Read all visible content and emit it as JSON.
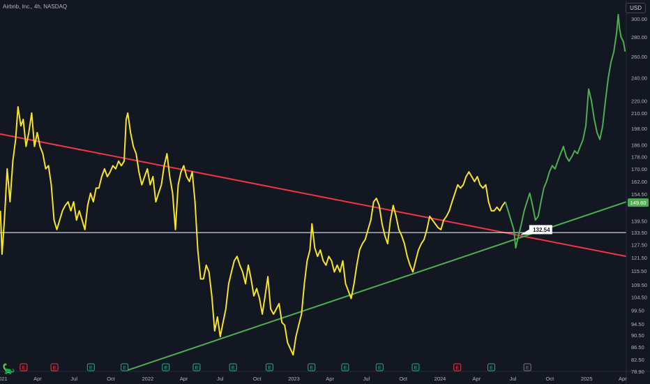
{
  "header": {
    "title": "Airbnb, Inc., 4h, NASDAQ",
    "currency": "USD"
  },
  "logo": {
    "icon": "tradingview-logo-icon"
  },
  "events": [
    {
      "label": "E",
      "color": "#f23645",
      "date": "2021-02-25"
    },
    {
      "label": "E",
      "color": "#f23645",
      "date": "2021-05-13"
    },
    {
      "label": "E",
      "color": "#22ab94",
      "date": "2021-08-12"
    },
    {
      "label": "E",
      "color": "#22ab94",
      "date": "2021-11-04"
    },
    {
      "label": "E",
      "color": "#22ab94",
      "date": "2022-02-15"
    },
    {
      "label": "E",
      "color": "#22ab94",
      "date": "2022-05-03"
    },
    {
      "label": "E",
      "color": "#22ab94",
      "date": "2022-08-02"
    },
    {
      "label": "E",
      "color": "#22ab94",
      "date": "2022-11-01"
    },
    {
      "label": "E",
      "color": "#22ab94",
      "date": "2023-02-14"
    },
    {
      "label": "E",
      "color": "#22ab94",
      "date": "2023-05-09"
    },
    {
      "label": "E",
      "color": "#22ab94",
      "date": "2023-08-03"
    },
    {
      "label": "E",
      "color": "#22ab94",
      "date": "2023-11-01"
    },
    {
      "label": "E",
      "color": "#f23645",
      "date": "2024-02-13"
    },
    {
      "label": "E",
      "color": "#22ab94",
      "date": "2024-05-08"
    },
    {
      "label": "E",
      "color": "#787b86",
      "date": "2024-08-06"
    }
  ],
  "chart_data": {
    "type": "line",
    "title": "Airbnb, Inc., 4h, NASDAQ",
    "xlabel": "",
    "ylabel": "",
    "y_scale": "log",
    "ylim": [
      78.9,
      318
    ],
    "xlim": [
      "2020-12-28",
      "2025-04-10"
    ],
    "grid": false,
    "x_tick_labels": [
      {
        "date": "2021-01-01",
        "label": "2021"
      },
      {
        "date": "2021-04-01",
        "label": "Apr"
      },
      {
        "date": "2021-07-01",
        "label": "Jul"
      },
      {
        "date": "2021-10-01",
        "label": "Oct"
      },
      {
        "date": "2022-01-01",
        "label": "2022"
      },
      {
        "date": "2022-04-01",
        "label": "Apr"
      },
      {
        "date": "2022-07-01",
        "label": "Jul"
      },
      {
        "date": "2022-10-01",
        "label": "Oct"
      },
      {
        "date": "2023-01-01",
        "label": "2023"
      },
      {
        "date": "2023-04-01",
        "label": "Apr"
      },
      {
        "date": "2023-07-01",
        "label": "Jul"
      },
      {
        "date": "2023-10-01",
        "label": "Oct"
      },
      {
        "date": "2024-01-01",
        "label": "2024"
      },
      {
        "date": "2024-04-01",
        "label": "Apr"
      },
      {
        "date": "2024-07-01",
        "label": "Jul"
      },
      {
        "date": "2024-10-01",
        "label": "Oct"
      },
      {
        "date": "2025-01-01",
        "label": "2025"
      },
      {
        "date": "2025-04-01",
        "label": "Apr"
      }
    ],
    "y_tick_labels": [
      "300.00",
      "280.00",
      "260.00",
      "240.00",
      "220.00",
      "210.00",
      "198.00",
      "186.00",
      "178.00",
      "170.00",
      "162.00",
      "154.50",
      "139.50",
      "133.50",
      "127.50",
      "121.50",
      "115.50",
      "109.50",
      "104.50",
      "99.50",
      "94.50",
      "90.50",
      "86.50",
      "82.50",
      "78.90"
    ],
    "series": [
      {
        "color": "#f7e32a",
        "points": [
          [
            "2020-12-29",
            145
          ],
          [
            "2021-01-02",
            123
          ],
          [
            "2021-01-08",
            140
          ],
          [
            "2021-01-15",
            170
          ],
          [
            "2021-01-22",
            150
          ],
          [
            "2021-01-29",
            175
          ],
          [
            "2021-02-05",
            190
          ],
          [
            "2021-02-11",
            215
          ],
          [
            "2021-02-18",
            200
          ],
          [
            "2021-02-24",
            205
          ],
          [
            "2021-03-03",
            185
          ],
          [
            "2021-03-10",
            195
          ],
          [
            "2021-03-17",
            210
          ],
          [
            "2021-03-24",
            185
          ],
          [
            "2021-03-31",
            195
          ],
          [
            "2021-04-07",
            185
          ],
          [
            "2021-04-14",
            180
          ],
          [
            "2021-04-21",
            170
          ],
          [
            "2021-04-28",
            172
          ],
          [
            "2021-05-05",
            160
          ],
          [
            "2021-05-12",
            140
          ],
          [
            "2021-05-19",
            135
          ],
          [
            "2021-05-26",
            140
          ],
          [
            "2021-06-02",
            145
          ],
          [
            "2021-06-09",
            148
          ],
          [
            "2021-06-16",
            150
          ],
          [
            "2021-06-23",
            145
          ],
          [
            "2021-06-30",
            150
          ],
          [
            "2021-07-07",
            140
          ],
          [
            "2021-07-14",
            145
          ],
          [
            "2021-07-21",
            140
          ],
          [
            "2021-07-28",
            135
          ],
          [
            "2021-08-04",
            148
          ],
          [
            "2021-08-11",
            155
          ],
          [
            "2021-08-18",
            150
          ],
          [
            "2021-08-25",
            158
          ],
          [
            "2021-09-01",
            158
          ],
          [
            "2021-09-08",
            165
          ],
          [
            "2021-09-15",
            170
          ],
          [
            "2021-09-22",
            165
          ],
          [
            "2021-09-29",
            168
          ],
          [
            "2021-10-06",
            172
          ],
          [
            "2021-10-13",
            170
          ],
          [
            "2021-10-20",
            175
          ],
          [
            "2021-10-27",
            172
          ],
          [
            "2021-11-03",
            175
          ],
          [
            "2021-11-08",
            205
          ],
          [
            "2021-11-12",
            210
          ],
          [
            "2021-11-19",
            195
          ],
          [
            "2021-11-26",
            185
          ],
          [
            "2021-12-03",
            180
          ],
          [
            "2021-12-10",
            168
          ],
          [
            "2021-12-17",
            160
          ],
          [
            "2021-12-24",
            165
          ],
          [
            "2021-12-31",
            170
          ],
          [
            "2022-01-07",
            160
          ],
          [
            "2022-01-14",
            165
          ],
          [
            "2022-01-21",
            150
          ],
          [
            "2022-01-28",
            155
          ],
          [
            "2022-02-04",
            160
          ],
          [
            "2022-02-11",
            172
          ],
          [
            "2022-02-18",
            180
          ],
          [
            "2022-02-25",
            165
          ],
          [
            "2022-03-04",
            155
          ],
          [
            "2022-03-11",
            135
          ],
          [
            "2022-03-18",
            160
          ],
          [
            "2022-03-25",
            168
          ],
          [
            "2022-04-01",
            172
          ],
          [
            "2022-04-08",
            165
          ],
          [
            "2022-04-15",
            162
          ],
          [
            "2022-04-22",
            168
          ],
          [
            "2022-04-29",
            150
          ],
          [
            "2022-05-06",
            125
          ],
          [
            "2022-05-13",
            112
          ],
          [
            "2022-05-20",
            112
          ],
          [
            "2022-05-27",
            118
          ],
          [
            "2022-06-03",
            115
          ],
          [
            "2022-06-10",
            105
          ],
          [
            "2022-06-17",
            92
          ],
          [
            "2022-06-24",
            97
          ],
          [
            "2022-07-01",
            90
          ],
          [
            "2022-07-08",
            95
          ],
          [
            "2022-07-15",
            100
          ],
          [
            "2022-07-22",
            110
          ],
          [
            "2022-07-29",
            115
          ],
          [
            "2022-08-05",
            120
          ],
          [
            "2022-08-12",
            122
          ],
          [
            "2022-08-19",
            118
          ],
          [
            "2022-08-26",
            115
          ],
          [
            "2022-09-02",
            110
          ],
          [
            "2022-09-09",
            118
          ],
          [
            "2022-09-16",
            112
          ],
          [
            "2022-09-23",
            105
          ],
          [
            "2022-09-30",
            108
          ],
          [
            "2022-10-07",
            104
          ],
          [
            "2022-10-14",
            98
          ],
          [
            "2022-10-21",
            105
          ],
          [
            "2022-10-28",
            113
          ],
          [
            "2022-11-04",
            100
          ],
          [
            "2022-11-11",
            98
          ],
          [
            "2022-11-18",
            100
          ],
          [
            "2022-11-25",
            102
          ],
          [
            "2022-12-02",
            95
          ],
          [
            "2022-12-09",
            94
          ],
          [
            "2022-12-16",
            88
          ],
          [
            "2022-12-23",
            86
          ],
          [
            "2022-12-30",
            84
          ],
          [
            "2023-01-06",
            90
          ],
          [
            "2023-01-13",
            94
          ],
          [
            "2023-01-20",
            98
          ],
          [
            "2023-01-27",
            110
          ],
          [
            "2023-02-03",
            120
          ],
          [
            "2023-02-10",
            125
          ],
          [
            "2023-02-15",
            138
          ],
          [
            "2023-02-22",
            126
          ],
          [
            "2023-03-01",
            122
          ],
          [
            "2023-03-08",
            125
          ],
          [
            "2023-03-15",
            120
          ],
          [
            "2023-03-22",
            118
          ],
          [
            "2023-03-29",
            122
          ],
          [
            "2023-04-05",
            120
          ],
          [
            "2023-04-12",
            115
          ],
          [
            "2023-04-19",
            118
          ],
          [
            "2023-04-26",
            115
          ],
          [
            "2023-05-03",
            120
          ],
          [
            "2023-05-10",
            110
          ],
          [
            "2023-05-17",
            107
          ],
          [
            "2023-05-24",
            104
          ],
          [
            "2023-05-31",
            110
          ],
          [
            "2023-06-07",
            118
          ],
          [
            "2023-06-14",
            125
          ],
          [
            "2023-06-21",
            128
          ],
          [
            "2023-06-28",
            130
          ],
          [
            "2023-07-05",
            135
          ],
          [
            "2023-07-12",
            140
          ],
          [
            "2023-07-19",
            150
          ],
          [
            "2023-07-26",
            152
          ],
          [
            "2023-08-02",
            148
          ],
          [
            "2023-08-09",
            138
          ],
          [
            "2023-08-16",
            132
          ],
          [
            "2023-08-23",
            128
          ],
          [
            "2023-08-30",
            140
          ],
          [
            "2023-09-06",
            148
          ],
          [
            "2023-09-13",
            142
          ],
          [
            "2023-09-20",
            135
          ],
          [
            "2023-09-27",
            132
          ],
          [
            "2023-10-04",
            128
          ],
          [
            "2023-10-11",
            122
          ],
          [
            "2023-10-18",
            118
          ],
          [
            "2023-10-25",
            115
          ],
          [
            "2023-11-01",
            120
          ],
          [
            "2023-11-08",
            125
          ],
          [
            "2023-11-15",
            128
          ],
          [
            "2023-11-22",
            130
          ],
          [
            "2023-11-29",
            135
          ],
          [
            "2023-12-06",
            142
          ],
          [
            "2023-12-13",
            140
          ],
          [
            "2023-12-20",
            138
          ],
          [
            "2023-12-27",
            136
          ],
          [
            "2024-01-03",
            135
          ],
          [
            "2024-01-10",
            140
          ],
          [
            "2024-01-17",
            142
          ],
          [
            "2024-01-24",
            145
          ],
          [
            "2024-01-31",
            150
          ],
          [
            "2024-02-07",
            155
          ],
          [
            "2024-02-14",
            160
          ],
          [
            "2024-02-21",
            158
          ],
          [
            "2024-02-28",
            160
          ],
          [
            "2024-03-06",
            165
          ],
          [
            "2024-03-13",
            168
          ],
          [
            "2024-03-20",
            165
          ],
          [
            "2024-03-27",
            162
          ],
          [
            "2024-04-03",
            165
          ],
          [
            "2024-04-10",
            160
          ],
          [
            "2024-04-17",
            158
          ],
          [
            "2024-04-24",
            160
          ],
          [
            "2024-05-01",
            150
          ],
          [
            "2024-05-08",
            145
          ],
          [
            "2024-05-15",
            145
          ],
          [
            "2024-05-22",
            147
          ],
          [
            "2024-05-29",
            145
          ],
          [
            "2024-06-05",
            148
          ],
          [
            "2024-06-12",
            150
          ]
        ]
      },
      {
        "color": "#4caf50",
        "points": [
          [
            "2024-06-12",
            150
          ],
          [
            "2024-06-19",
            145
          ],
          [
            "2024-06-26",
            140
          ],
          [
            "2024-07-03",
            135
          ],
          [
            "2024-07-08",
            126
          ],
          [
            "2024-07-15",
            132
          ],
          [
            "2024-07-22",
            138
          ],
          [
            "2024-07-29",
            145
          ],
          [
            "2024-08-05",
            150
          ],
          [
            "2024-08-12",
            155
          ],
          [
            "2024-08-19",
            148
          ],
          [
            "2024-08-26",
            140
          ],
          [
            "2024-09-02",
            142
          ],
          [
            "2024-09-09",
            150
          ],
          [
            "2024-09-16",
            158
          ],
          [
            "2024-09-23",
            162
          ],
          [
            "2024-09-30",
            168
          ],
          [
            "2024-10-07",
            172
          ],
          [
            "2024-10-14",
            170
          ],
          [
            "2024-10-21",
            175
          ],
          [
            "2024-10-28",
            180
          ],
          [
            "2024-11-04",
            185
          ],
          [
            "2024-11-11",
            178
          ],
          [
            "2024-11-18",
            175
          ],
          [
            "2024-11-25",
            178
          ],
          [
            "2024-12-02",
            182
          ],
          [
            "2024-12-09",
            180
          ],
          [
            "2024-12-16",
            185
          ],
          [
            "2024-12-23",
            190
          ],
          [
            "2024-12-30",
            200
          ],
          [
            "2025-01-06",
            230
          ],
          [
            "2025-01-13",
            220
          ],
          [
            "2025-01-20",
            205
          ],
          [
            "2025-01-27",
            195
          ],
          [
            "2025-02-03",
            190
          ],
          [
            "2025-02-10",
            200
          ],
          [
            "2025-02-17",
            220
          ],
          [
            "2025-02-24",
            240
          ],
          [
            "2025-03-03",
            255
          ],
          [
            "2025-03-10",
            265
          ],
          [
            "2025-03-17",
            285
          ],
          [
            "2025-03-21",
            305
          ],
          [
            "2025-03-24",
            290
          ],
          [
            "2025-03-28",
            280
          ],
          [
            "2025-04-03",
            275
          ],
          [
            "2025-04-07",
            265
          ]
        ]
      }
    ],
    "trendlines": [
      {
        "color": "#f23645",
        "from": [
          "2020-12-28",
          194
        ],
        "to": [
          "2025-04-10",
          122
        ]
      },
      {
        "color": "#4caf50",
        "from": [
          "2021-11-05",
          79
        ],
        "to": [
          "2025-04-10",
          150
        ]
      },
      {
        "color": "#ffffff",
        "from": [
          "2020-12-28",
          133.5
        ],
        "to": [
          "2025-04-10",
          133.5
        ]
      }
    ],
    "annotations": [
      {
        "text": "132.54",
        "date": "2024-08-01",
        "value": 132.54,
        "style": "callout"
      },
      {
        "text": "149.60",
        "value": 149.6,
        "style": "price-badge",
        "color": "#4caf50"
      }
    ]
  }
}
